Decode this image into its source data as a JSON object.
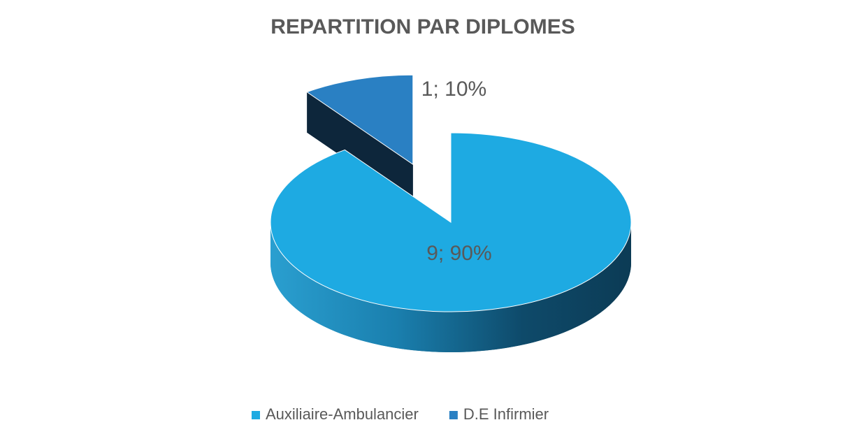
{
  "chart_data": {
    "type": "pie3d",
    "title": "REPARTITION PAR DIPLOMES",
    "categories": [
      "Auxiliaire-Ambulancier",
      "D.E Infirmier"
    ],
    "values": [
      9,
      1
    ],
    "value_labels": [
      "9; 90%",
      "1; 10%"
    ],
    "colors": [
      "#1eaae2",
      "#2a80c3"
    ],
    "legend": "bottom"
  }
}
